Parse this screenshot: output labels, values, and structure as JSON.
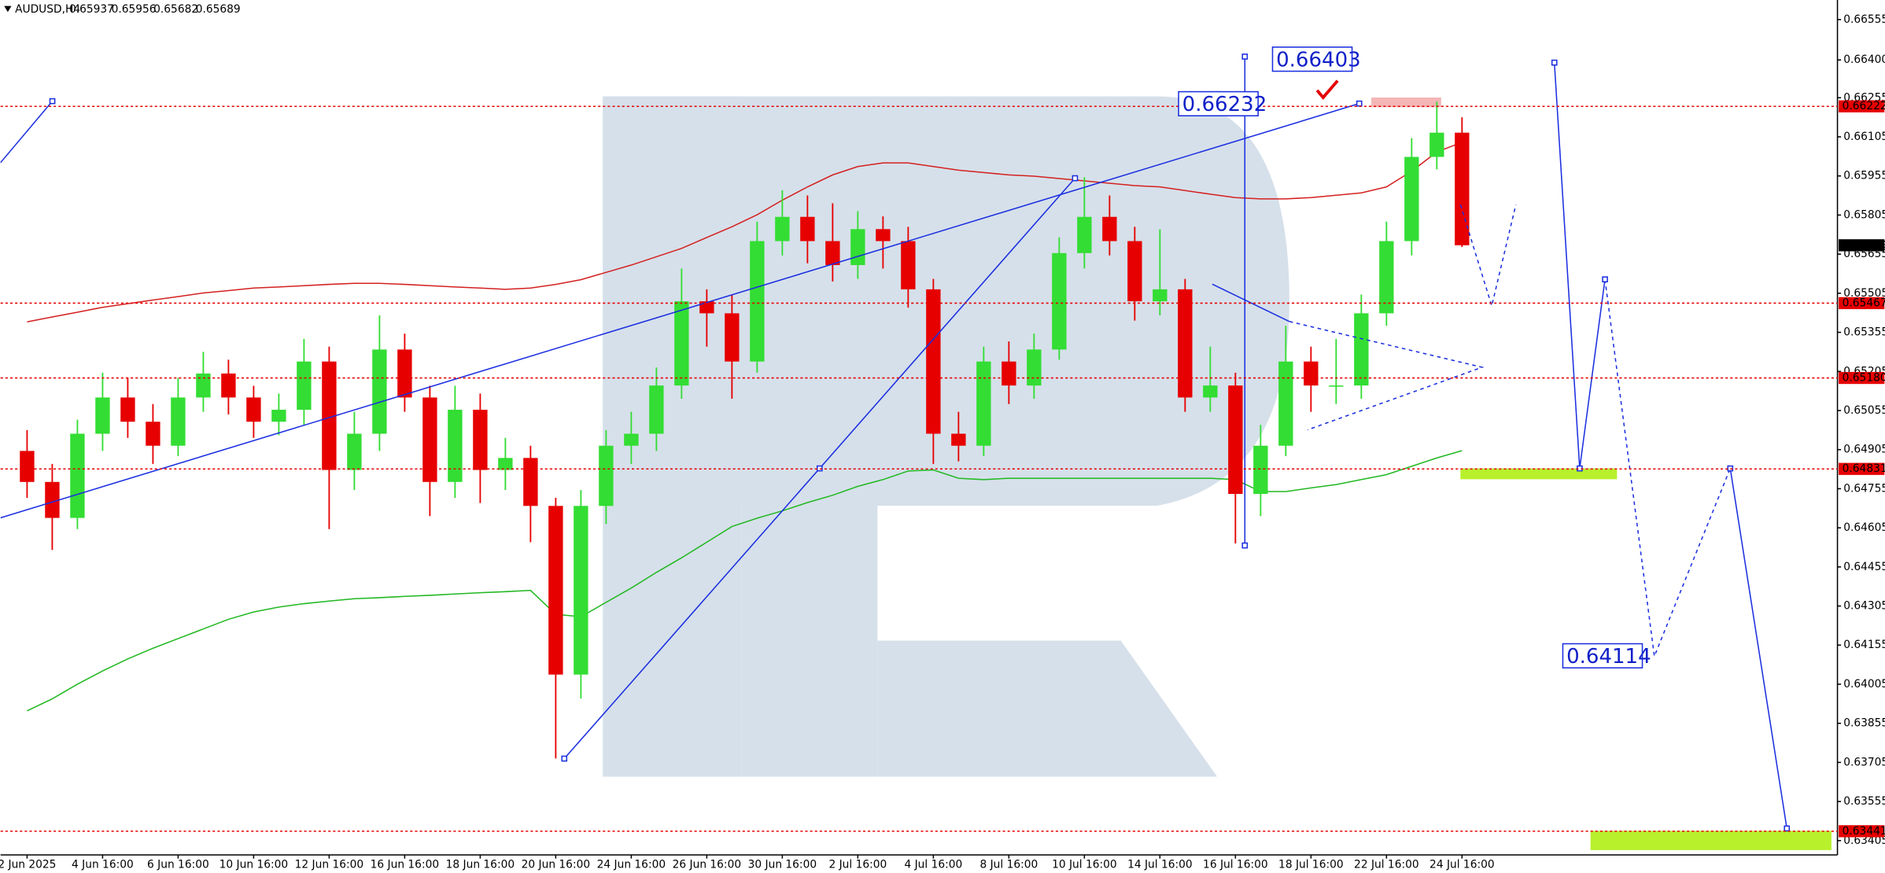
{
  "chart_data": {
    "type": "candlestick",
    "symbol": "AUDUSD,H4",
    "header_prices": [
      0.65937,
      0.65956,
      0.65682,
      0.65689
    ],
    "categories": [
      "2 Jun 2025",
      null,
      null,
      "4 Jun 16:00",
      null,
      null,
      "6 Jun 16:00",
      null,
      null,
      "10 Jun 16:00",
      null,
      null,
      "12 Jun 16:00",
      null,
      null,
      "16 Jun 16:00",
      null,
      null,
      "18 Jun 16:00",
      null,
      null,
      "20 Jun 16:00",
      null,
      null,
      "24 Jun 16:00",
      null,
      null,
      "26 Jun 16:00",
      null,
      null,
      "30 Jun 16:00",
      null,
      null,
      "2 Jul 16:00",
      null,
      null,
      "4 Jul 16:00",
      null,
      null,
      "8 Jul 16:00",
      null,
      null,
      "10 Jul 16:00",
      null,
      null,
      "14 Jul 16:00",
      null,
      null,
      "16 Jul 16:00",
      null,
      null,
      "18 Jul 16:00",
      null,
      null,
      "22 Jul 16:00",
      null,
      null,
      "24 Jul 16:00"
    ],
    "ohlc": [
      [
        0.649,
        0.6498,
        0.6472,
        0.64781
      ],
      [
        0.64781,
        0.6485,
        0.6452,
        0.64643
      ],
      [
        0.64643,
        0.6502,
        0.646,
        0.64966
      ],
      [
        0.64966,
        0.652,
        0.649,
        0.65105
      ],
      [
        0.65105,
        0.6518,
        0.6495,
        0.65012
      ],
      [
        0.65012,
        0.6508,
        0.6485,
        0.6492
      ],
      [
        0.6492,
        0.6518,
        0.6488,
        0.65105
      ],
      [
        0.65105,
        0.6528,
        0.6505,
        0.65197
      ],
      [
        0.65197,
        0.6525,
        0.6504,
        0.65105
      ],
      [
        0.65105,
        0.6515,
        0.6495,
        0.65012
      ],
      [
        0.65012,
        0.6512,
        0.6496,
        0.65058
      ],
      [
        0.65058,
        0.6533,
        0.65,
        0.65243
      ],
      [
        0.65243,
        0.653,
        0.646,
        0.64827
      ],
      [
        0.64827,
        0.6505,
        0.6475,
        0.64966
      ],
      [
        0.64966,
        0.6542,
        0.649,
        0.65289
      ],
      [
        0.65289,
        0.6535,
        0.6505,
        0.65105
      ],
      [
        0.65105,
        0.6515,
        0.6465,
        0.64781
      ],
      [
        0.64781,
        0.6515,
        0.6472,
        0.65058
      ],
      [
        0.65058,
        0.6512,
        0.647,
        0.64827
      ],
      [
        0.64827,
        0.6495,
        0.6475,
        0.64873
      ],
      [
        0.64873,
        0.6492,
        0.6455,
        0.64689
      ],
      [
        0.64689,
        0.6472,
        0.6372,
        0.64042
      ],
      [
        0.64042,
        0.6475,
        0.6395,
        0.64689
      ],
      [
        0.64689,
        0.6498,
        0.6462,
        0.6492
      ],
      [
        0.6492,
        0.6505,
        0.6485,
        0.64966
      ],
      [
        0.64966,
        0.6522,
        0.649,
        0.65151
      ],
      [
        0.65151,
        0.656,
        0.651,
        0.65474
      ],
      [
        0.65474,
        0.6552,
        0.653,
        0.65428
      ],
      [
        0.65428,
        0.655,
        0.651,
        0.65243
      ],
      [
        0.65243,
        0.6578,
        0.652,
        0.65705
      ],
      [
        0.65705,
        0.659,
        0.6565,
        0.65798
      ],
      [
        0.65798,
        0.6588,
        0.6562,
        0.65705
      ],
      [
        0.65705,
        0.6585,
        0.6555,
        0.65613
      ],
      [
        0.65613,
        0.6582,
        0.6556,
        0.65751
      ],
      [
        0.65751,
        0.658,
        0.656,
        0.65705
      ],
      [
        0.65705,
        0.6576,
        0.6545,
        0.6552
      ],
      [
        0.6552,
        0.6556,
        0.6485,
        0.64966
      ],
      [
        0.64966,
        0.6505,
        0.6486,
        0.6492
      ],
      [
        0.6492,
        0.653,
        0.6488,
        0.65243
      ],
      [
        0.65243,
        0.6532,
        0.6508,
        0.65151
      ],
      [
        0.65151,
        0.6535,
        0.651,
        0.65289
      ],
      [
        0.65289,
        0.6572,
        0.6525,
        0.65659
      ],
      [
        0.65659,
        0.6595,
        0.656,
        0.65798
      ],
      [
        0.65798,
        0.6588,
        0.6565,
        0.65705
      ],
      [
        0.65705,
        0.6576,
        0.654,
        0.65474
      ],
      [
        0.65474,
        0.6575,
        0.6542,
        0.6552
      ],
      [
        0.6552,
        0.6556,
        0.6505,
        0.65105
      ],
      [
        0.65105,
        0.653,
        0.6505,
        0.65151
      ],
      [
        0.65151,
        0.652,
        0.64545,
        0.64735
      ],
      [
        0.64735,
        0.65,
        0.6465,
        0.6492
      ],
      [
        0.6492,
        0.6538,
        0.6488,
        0.65243
      ],
      [
        0.65243,
        0.653,
        0.6505,
        0.65151
      ],
      [
        0.65151,
        0.6533,
        0.6508,
        0.65151
      ],
      [
        0.65151,
        0.655,
        0.651,
        0.65428
      ],
      [
        0.65428,
        0.6578,
        0.6538,
        0.65705
      ],
      [
        0.65705,
        0.661,
        0.6565,
        0.66028
      ],
      [
        0.66028,
        0.6624,
        0.6598,
        0.66121
      ],
      [
        0.66121,
        0.6618,
        0.65682,
        0.65689
      ]
    ],
    "up_color": "#33dd33",
    "down_color": "#e60000",
    "series": [
      {
        "color": "#d42020",
        "values": [
          0.65395,
          0.65414,
          0.65432,
          0.65451,
          0.65465,
          0.65479,
          0.65492,
          0.65506,
          0.65515,
          0.65525,
          0.65529,
          0.65534,
          0.65539,
          0.65543,
          0.65543,
          0.65539,
          0.65534,
          0.65529,
          0.65525,
          0.6552,
          0.65525,
          0.65539,
          0.65557,
          0.65585,
          0.65613,
          0.65645,
          0.65677,
          0.65719,
          0.6576,
          0.65806,
          0.65862,
          0.65913,
          0.65959,
          0.65991,
          0.66005,
          0.66005,
          0.65991,
          0.65977,
          0.65968,
          0.65959,
          0.65954,
          0.65945,
          0.65936,
          0.65927,
          0.65918,
          0.65913,
          0.65899,
          0.65885,
          0.65872,
          0.65867,
          0.65867,
          0.65872,
          0.65881,
          0.6589,
          0.65913,
          0.65973,
          0.66047,
          0.66084
        ]
      },
      {
        "color": "#22b822",
        "values": [
          0.63903,
          0.63949,
          0.64005,
          0.64056,
          0.64102,
          0.64143,
          0.6418,
          0.64217,
          0.64254,
          0.64282,
          0.64301,
          0.64314,
          0.64324,
          0.64333,
          0.64337,
          0.64342,
          0.64346,
          0.64351,
          0.64356,
          0.6436,
          0.64365,
          0.64273,
          0.64264,
          0.64319,
          0.64374,
          0.64434,
          0.6449,
          0.6455,
          0.6461,
          0.64642,
          0.6467,
          0.64702,
          0.6473,
          0.64764,
          0.6479,
          0.64823,
          0.64827,
          0.64795,
          0.6479,
          0.64795,
          0.64795,
          0.64795,
          0.64795,
          0.64795,
          0.64795,
          0.64795,
          0.64795,
          0.64795,
          0.6479,
          0.64744,
          0.64744,
          0.64758,
          0.64771,
          0.6479,
          0.64809,
          0.64841,
          0.64873,
          0.64901
        ]
      }
    ],
    "ylim": [
      0.6335,
      0.6663
    ],
    "yticks": [
      0.66555,
      {
        "value": 0.664,
        "label": "0.66400"
      },
      0.66255,
      0.66105,
      0.65955,
      0.65805,
      0.65655,
      0.65505,
      0.65355,
      0.65205,
      0.65055,
      0.64905,
      0.64755,
      0.64605,
      0.64455,
      0.64305,
      0.64155,
      0.64005,
      0.63855,
      0.63705,
      0.63555,
      0.63405
    ],
    "levels": [
      0.66222,
      0.65467,
      {
        "value": 0.6518,
        "label": "0.65180"
      },
      0.64831,
      0.63441
    ],
    "level_color": "#e60000",
    "last_price": 0.65689,
    "annotations": [
      0.66403,
      0.66232,
      0.64114
    ],
    "grid": false
  }
}
